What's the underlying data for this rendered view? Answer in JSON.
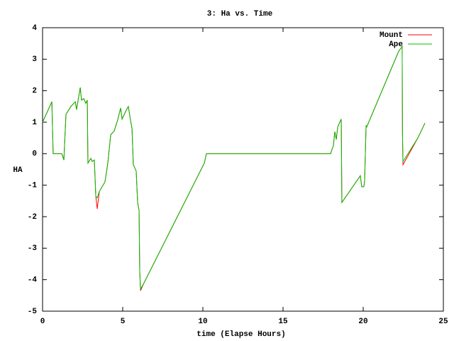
{
  "chart_data": {
    "type": "line",
    "title": "3: Ha vs. Time",
    "x_label": "time (Elapse Hours)",
    "y_label": "HA",
    "x": [
      0,
      0.58,
      0.66,
      1.2,
      1.33,
      1.46,
      1.77,
      2.04,
      2.12,
      2.35,
      2.43,
      2.57,
      2.7,
      2.79,
      2.83,
      3.01,
      3.1,
      3.23,
      3.32,
      3.41,
      3.54,
      3.89,
      4.07,
      4.25,
      4.47,
      4.69,
      4.87,
      4.96,
      5.22,
      5.35,
      5.49,
      5.58,
      5.66,
      5.84,
      5.93,
      6.02,
      6.06,
      6.11,
      6.33,
      10.09,
      10.22,
      17.96,
      18.14,
      18.23,
      18.32,
      18.41,
      18.63,
      18.67,
      19.82,
      19.91,
      20.04,
      20.09,
      20.18,
      20.22,
      22.21,
      22.43,
      22.45,
      22.48,
      23.41,
      23.85
    ],
    "series": [
      {
        "name": "Mount",
        "color": "#ff0000",
        "values": [
          1.0,
          1.65,
          0,
          0,
          -0.2,
          1.25,
          1.5,
          1.65,
          1.4,
          2.1,
          1.7,
          1.75,
          1.6,
          1.7,
          -0.3,
          -0.15,
          -0.25,
          -0.2,
          -1.35,
          -1.75,
          -1.2,
          -0.9,
          -0.3,
          0.6,
          0.72,
          1.08,
          1.45,
          1.1,
          1.38,
          1.5,
          1.05,
          0.8,
          -0.35,
          -0.55,
          -1.55,
          -1.8,
          -3.7,
          -4.35,
          -4.1,
          -0.3,
          0,
          0,
          0.25,
          0.7,
          0.45,
          0.85,
          1.1,
          -1.55,
          -0.7,
          -1.05,
          -1.05,
          -0.85,
          0.9,
          0.85,
          3.25,
          3.4,
          0.7,
          -0.35,
          0.5,
          0.97
        ]
      },
      {
        "name": "Ape",
        "color": "#00c000",
        "values": [
          1.0,
          1.65,
          0,
          0,
          -0.2,
          1.25,
          1.5,
          1.65,
          1.4,
          2.1,
          1.7,
          1.75,
          1.6,
          1.7,
          -0.3,
          -0.15,
          -0.25,
          -0.2,
          -1.35,
          -1.4,
          -1.2,
          -0.9,
          -0.3,
          0.6,
          0.72,
          1.08,
          1.45,
          1.1,
          1.38,
          1.5,
          1.05,
          0.8,
          -0.35,
          -0.55,
          -1.55,
          -1.8,
          -3.7,
          -4.3,
          -4.1,
          -0.3,
          0,
          0,
          0.25,
          0.7,
          0.45,
          0.85,
          1.1,
          -1.55,
          -0.7,
          -1.05,
          -1.05,
          -0.85,
          0.9,
          0.85,
          3.25,
          3.4,
          0.6,
          -0.25,
          0.5,
          0.97
        ]
      }
    ],
    "xlim": [
      0,
      25
    ],
    "xticks": [
      0,
      5,
      10,
      15,
      20,
      25
    ],
    "ylim": [
      -5,
      4
    ],
    "yticks": [
      -5,
      -4,
      -3,
      -2,
      -1,
      0,
      1,
      2,
      3,
      4
    ],
    "legend": "top-right"
  }
}
